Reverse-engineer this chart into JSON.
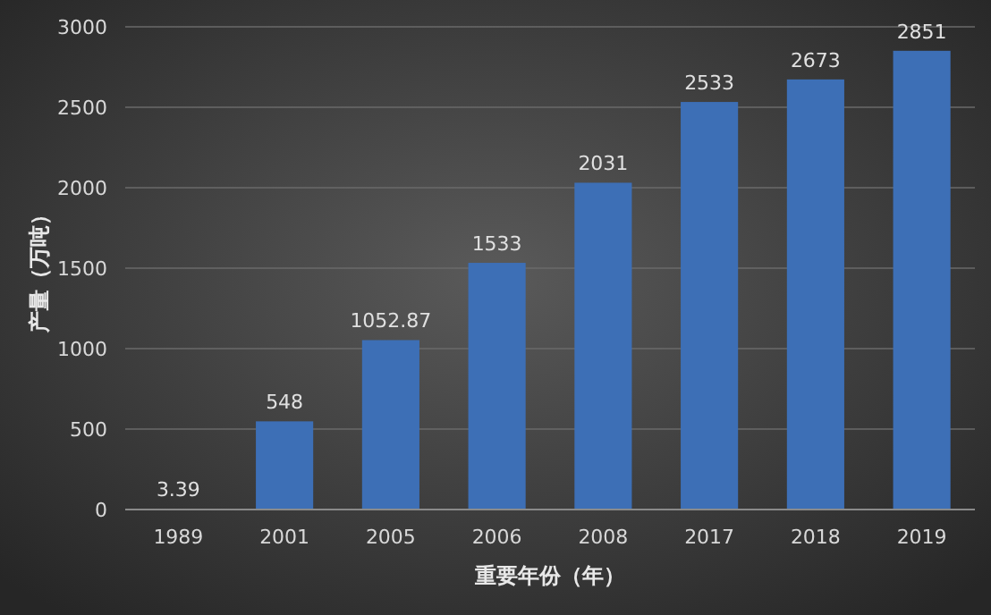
{
  "chart_data": {
    "type": "bar",
    "xlabel": "重要年份（年）",
    "ylabel": "产量（万吨）",
    "categories": [
      "1989",
      "2001",
      "2005",
      "2006",
      "2008",
      "2017",
      "2018",
      "2019"
    ],
    "values": [
      3.39,
      548,
      1052.87,
      1533,
      2031,
      2533,
      2673,
      2851
    ],
    "color": "#3d6fb6",
    "ylim": [
      0,
      3000
    ],
    "yticks": [
      0,
      500,
      1000,
      1500,
      2000,
      2500,
      3000
    ],
    "grid": "y",
    "data_labels": true
  }
}
